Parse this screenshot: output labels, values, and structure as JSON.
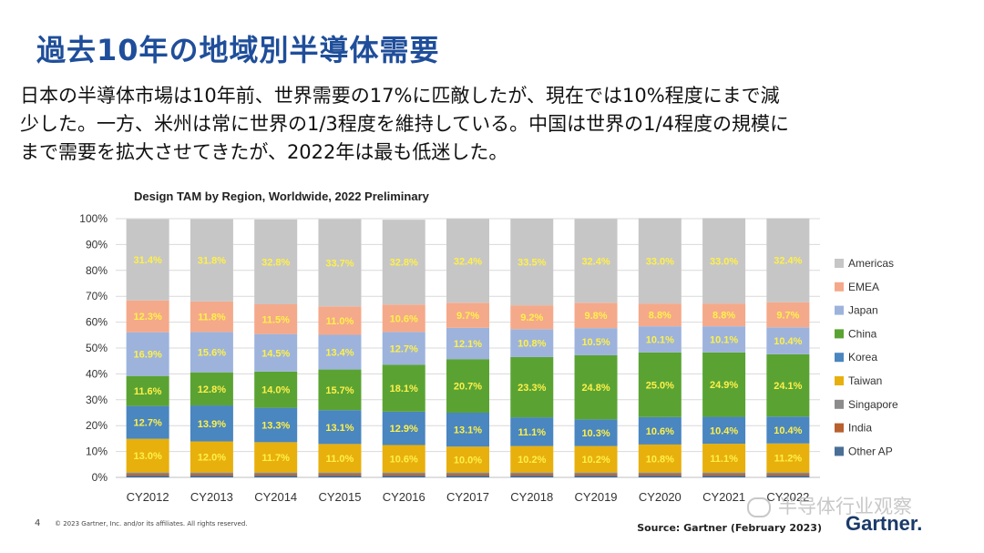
{
  "slide_title": "過去10年の地域別半導体需要",
  "body_lines": [
    "日本の半導体市場は10年前、世界需要の17%に匹敵したが、現在では10%程度にまで減",
    "少した。一方、米州は常に世界の1/3程度を維持している。中国は世界の1/4程度の規模に",
    "まで需要を拡大させてきたが、2022年は最も低迷した。"
  ],
  "footer": {
    "page_number": "4",
    "copyright": "© 2023 Gartner, Inc. and/or its affiliates. All rights reserved.",
    "source": "Source: Gartner (February 2023)",
    "brand": "Gartner.",
    "watermark": "半导体行业观察"
  },
  "chart_data": {
    "type": "bar",
    "stacked": true,
    "title": "Design TAM by Region, Worldwide, 2022 Preliminary",
    "categories": [
      "CY2012",
      "CY2013",
      "CY2014",
      "CY2015",
      "CY2016",
      "CY2017",
      "CY2018",
      "CY2019",
      "CY2020",
      "CY2021",
      "CY2022"
    ],
    "y_ticks": [
      "0%",
      "10%",
      "20%",
      "30%",
      "40%",
      "50%",
      "60%",
      "70%",
      "80%",
      "90%",
      "100%"
    ],
    "ylim": [
      0,
      100
    ],
    "legend_position": "right",
    "series": [
      {
        "name": "Other AP",
        "color": "#4a6f96",
        "values": [
          0.8,
          0.8,
          0.8,
          0.8,
          0.8,
          0.8,
          0.8,
          0.8,
          0.8,
          0.8,
          0.8
        ],
        "labels": [
          null,
          null,
          null,
          null,
          null,
          null,
          null,
          null,
          null,
          null,
          null
        ]
      },
      {
        "name": "India",
        "color": "#b8602e",
        "values": [
          0.6,
          0.6,
          0.6,
          0.6,
          0.6,
          0.6,
          0.6,
          0.6,
          0.6,
          0.6,
          0.6
        ],
        "labels": [
          null,
          null,
          null,
          null,
          null,
          null,
          null,
          null,
          null,
          null,
          null
        ]
      },
      {
        "name": "Singapore",
        "color": "#8c8c8c",
        "values": [
          0.5,
          0.5,
          0.5,
          0.5,
          0.5,
          0.5,
          0.5,
          0.5,
          0.5,
          0.5,
          0.5
        ],
        "labels": [
          null,
          null,
          null,
          null,
          null,
          null,
          null,
          null,
          null,
          null,
          null
        ]
      },
      {
        "name": "Taiwan",
        "color": "#e8b00c",
        "values": [
          13.0,
          12.0,
          11.7,
          11.0,
          10.6,
          10.0,
          10.2,
          10.2,
          10.8,
          11.1,
          11.2
        ],
        "labels": [
          "13.0%",
          "12.0%",
          "11.7%",
          "11.0%",
          "10.6%",
          "10.0%",
          "10.2%",
          "10.2%",
          "10.8%",
          "11.1%",
          "11.2%"
        ]
      },
      {
        "name": "Korea",
        "color": "#4a86bf",
        "values": [
          12.7,
          13.9,
          13.3,
          13.1,
          12.9,
          13.1,
          11.1,
          10.3,
          10.6,
          10.4,
          10.4
        ],
        "labels": [
          "12.7%",
          "13.9%",
          "13.3%",
          "13.1%",
          "12.9%",
          "13.1%",
          "11.1%",
          "10.3%",
          "10.6%",
          "10.4%",
          "10.4%"
        ]
      },
      {
        "name": "China",
        "color": "#5aa333",
        "values": [
          11.6,
          12.8,
          14.0,
          15.7,
          18.1,
          20.7,
          23.3,
          24.8,
          25.0,
          24.9,
          24.1
        ],
        "labels": [
          "11.6%",
          "12.8%",
          "14.0%",
          "15.7%",
          "18.1%",
          "20.7%",
          "23.3%",
          "24.8%",
          "25.0%",
          "24.9%",
          "24.1%"
        ]
      },
      {
        "name": "Japan",
        "color": "#9db3dc",
        "values": [
          16.9,
          15.6,
          14.5,
          13.4,
          12.7,
          12.1,
          10.8,
          10.5,
          10.1,
          10.1,
          10.4
        ],
        "labels": [
          "16.9%",
          "15.6%",
          "14.5%",
          "13.4%",
          "12.7%",
          "12.1%",
          "10.8%",
          "10.5%",
          "10.1%",
          "10.1%",
          "10.4%"
        ]
      },
      {
        "name": "EMEA",
        "color": "#f4a98a",
        "values": [
          12.3,
          11.8,
          11.5,
          11.0,
          10.6,
          9.7,
          9.2,
          9.8,
          8.8,
          8.8,
          9.7
        ],
        "labels": [
          "12.3%",
          "11.8%",
          "11.5%",
          "11.0%",
          "10.6%",
          "9.7%",
          "9.2%",
          "9.8%",
          "8.8%",
          "8.8%",
          "9.7%"
        ]
      },
      {
        "name": "Americas",
        "color": "#c6c6c6",
        "values": [
          31.4,
          31.8,
          32.8,
          33.7,
          32.8,
          32.4,
          33.5,
          32.4,
          33.0,
          33.0,
          32.4
        ],
        "labels": [
          "31.4%",
          "31.8%",
          "32.8%",
          "33.7%",
          "32.8%",
          "32.4%",
          "33.5%",
          "32.4%",
          "33.0%",
          "33.0%",
          "32.4%"
        ]
      }
    ],
    "label_color": "#fff04a"
  }
}
